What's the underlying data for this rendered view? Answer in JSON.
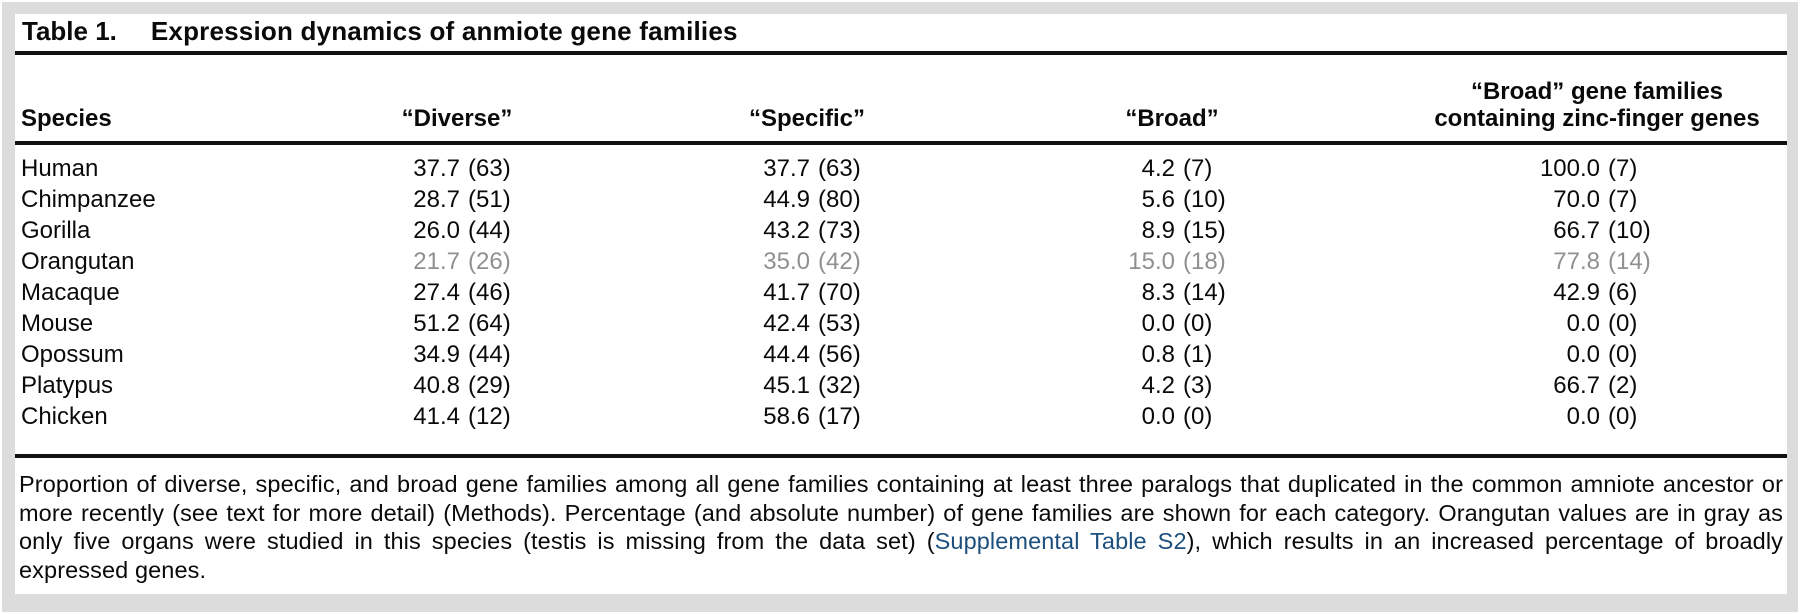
{
  "page": {
    "background_color": "#dcdcdc",
    "panel_color": "#ffffff",
    "text_color": "#0a0a0a"
  },
  "title": {
    "label": "Table 1.",
    "text": "Expression dynamics of anmiote gene families"
  },
  "table": {
    "columns": [
      {
        "label": "Species"
      },
      {
        "label": "“Diverse”"
      },
      {
        "label": "“Specific”"
      },
      {
        "label": "“Broad”"
      },
      {
        "label_line1": "“Broad” gene families",
        "label_line2": "containing zinc-finger genes"
      }
    ],
    "value_format": "percent (count)",
    "muted_value_color": "#909090",
    "rows": [
      {
        "species": "Human",
        "diverse": {
          "pct": "37.7",
          "n": "(63)"
        },
        "specific": {
          "pct": "37.7",
          "n": "(63)"
        },
        "broad": {
          "pct": "4.2",
          "n": "(7)"
        },
        "zinc": {
          "pct": "100.0",
          "n": "(7)"
        },
        "gray": false
      },
      {
        "species": "Chimpanzee",
        "diverse": {
          "pct": "28.7",
          "n": "(51)"
        },
        "specific": {
          "pct": "44.9",
          "n": "(80)"
        },
        "broad": {
          "pct": "5.6",
          "n": "(10)"
        },
        "zinc": {
          "pct": "70.0",
          "n": "(7)"
        },
        "gray": false
      },
      {
        "species": "Gorilla",
        "diverse": {
          "pct": "26.0",
          "n": "(44)"
        },
        "specific": {
          "pct": "43.2",
          "n": "(73)"
        },
        "broad": {
          "pct": "8.9",
          "n": "(15)"
        },
        "zinc": {
          "pct": "66.7",
          "n": "(10)"
        },
        "gray": false
      },
      {
        "species": "Orangutan",
        "diverse": {
          "pct": "21.7",
          "n": "(26)"
        },
        "specific": {
          "pct": "35.0",
          "n": "(42)"
        },
        "broad": {
          "pct": "15.0",
          "n": "(18)"
        },
        "zinc": {
          "pct": "77.8",
          "n": "(14)"
        },
        "gray": true
      },
      {
        "species": "Macaque",
        "diverse": {
          "pct": "27.4",
          "n": "(46)"
        },
        "specific": {
          "pct": "41.7",
          "n": "(70)"
        },
        "broad": {
          "pct": "8.3",
          "n": "(14)"
        },
        "zinc": {
          "pct": "42.9",
          "n": "(6)"
        },
        "gray": false
      },
      {
        "species": "Mouse",
        "diverse": {
          "pct": "51.2",
          "n": "(64)"
        },
        "specific": {
          "pct": "42.4",
          "n": "(53)"
        },
        "broad": {
          "pct": "0.0",
          "n": "(0)"
        },
        "zinc": {
          "pct": "0.0",
          "n": "(0)"
        },
        "gray": false
      },
      {
        "species": "Opossum",
        "diverse": {
          "pct": "34.9",
          "n": "(44)"
        },
        "specific": {
          "pct": "44.4",
          "n": "(56)"
        },
        "broad": {
          "pct": "0.8",
          "n": "(1)"
        },
        "zinc": {
          "pct": "0.0",
          "n": "(0)"
        },
        "gray": false
      },
      {
        "species": "Platypus",
        "diverse": {
          "pct": "40.8",
          "n": "(29)"
        },
        "specific": {
          "pct": "45.1",
          "n": "(32)"
        },
        "broad": {
          "pct": "4.2",
          "n": "(3)"
        },
        "zinc": {
          "pct": "66.7",
          "n": "(2)"
        },
        "gray": false
      },
      {
        "species": "Chicken",
        "diverse": {
          "pct": "41.4",
          "n": "(12)"
        },
        "specific": {
          "pct": "58.6",
          "n": "(17)"
        },
        "broad": {
          "pct": "0.0",
          "n": "(0)"
        },
        "zinc": {
          "pct": "0.0",
          "n": "(0)"
        },
        "gray": false
      }
    ]
  },
  "footnote": {
    "text_before": "Proportion of diverse, specific, and broad gene families among all gene families containing at least three paralogs that duplicated in the common amniote ancestor or more recently (see text for more detail) (Methods). Percentage (and absolute number) of gene families are shown for each category. Orangutan values are in gray as only five organs were studied in this species (testis is missing from the data set) (",
    "link_text": "Supplemental Table S2",
    "text_after": "), which results in an increased percentage of broadly expressed genes.",
    "link_color": "#1d4f7d"
  }
}
